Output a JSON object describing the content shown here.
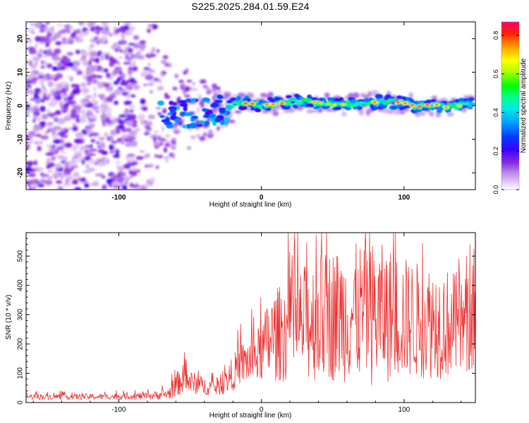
{
  "figure": {
    "title": "S225.2025.284.01.59.E24"
  },
  "chart_data": [
    {
      "type": "heatmap",
      "title": "S225.2025.284.01.59.E24",
      "xlabel": "Height of straight line (km)",
      "ylabel": "Frequency (Hz)",
      "xlim": [
        -165,
        150
      ],
      "ylim": [
        -25,
        25
      ],
      "xticks": [
        -100,
        0,
        100
      ],
      "yticks": [
        -20,
        -10,
        0,
        10,
        20
      ],
      "colorbar": {
        "label": "Normalized spectral amplitude",
        "range": [
          0.0,
          0.87
        ],
        "ticks": [
          0.0,
          0.2,
          0.4,
          0.6,
          0.8
        ],
        "colormap": [
          "#ffffff",
          "#e8d0f4",
          "#c9a2ee",
          "#8a2be2",
          "#5b00ff",
          "#0000ff",
          "#0090ff",
          "#00e0ff",
          "#00ff80",
          "#00ff00",
          "#a0ff00",
          "#ffff00",
          "#ffa000",
          "#ff0000",
          "#ff0070"
        ]
      },
      "noise_region_x": [
        -165,
        -75
      ],
      "transition_region_x": [
        -75,
        -20
      ],
      "ridge": {
        "x": [
          -20,
          -10,
          0,
          10,
          20,
          30,
          40,
          50,
          60,
          70,
          80,
          90,
          100,
          110,
          120,
          130,
          140,
          148
        ],
        "freq_hz": [
          0.5,
          0.8,
          0.2,
          0.5,
          1.2,
          1.5,
          1.0,
          0.3,
          0.5,
          0.8,
          1.0,
          1.2,
          0.8,
          -0.3,
          0.5,
          -0.5,
          0.0,
          0.5
        ],
        "amplitude": [
          0.8,
          0.85,
          0.75,
          0.8,
          0.82,
          0.86,
          0.7,
          0.65,
          0.7,
          0.75,
          0.8,
          0.86,
          0.78,
          0.85,
          0.8,
          0.75,
          0.7,
          0.78
        ]
      }
    },
    {
      "type": "line",
      "xlabel": "Height of straight line (km)",
      "ylabel": "SNR (10 * v/v)",
      "xlim": [
        -165,
        150
      ],
      "ylim": [
        0,
        580
      ],
      "xticks": [
        -100,
        0,
        100
      ],
      "yticks": [
        0,
        100,
        200,
        300,
        400,
        500
      ],
      "series": [
        {
          "name": "SNR",
          "color": "#ee3333",
          "x": [
            -165,
            -140,
            -110,
            -80,
            -65,
            -60,
            -55,
            -50,
            -40,
            -30,
            -25,
            -20,
            -15,
            -10,
            -5,
            0,
            5,
            10,
            20,
            30,
            40,
            50,
            60,
            70,
            80,
            90,
            100,
            110,
            120,
            130,
            140,
            150
          ],
          "mean": [
            20,
            20,
            20,
            22,
            30,
            60,
            80,
            70,
            55,
            50,
            70,
            100,
            130,
            140,
            150,
            170,
            210,
            230,
            250,
            270,
            290,
            300,
            300,
            310,
            300,
            300,
            290,
            280,
            280,
            270,
            260,
            270
          ],
          "amplitude": [
            10,
            10,
            10,
            12,
            20,
            40,
            50,
            40,
            30,
            25,
            40,
            60,
            70,
            80,
            90,
            100,
            150,
            160,
            180,
            200,
            220,
            230,
            230,
            240,
            250,
            230,
            210,
            200,
            200,
            190,
            180,
            160
          ]
        }
      ]
    }
  ]
}
